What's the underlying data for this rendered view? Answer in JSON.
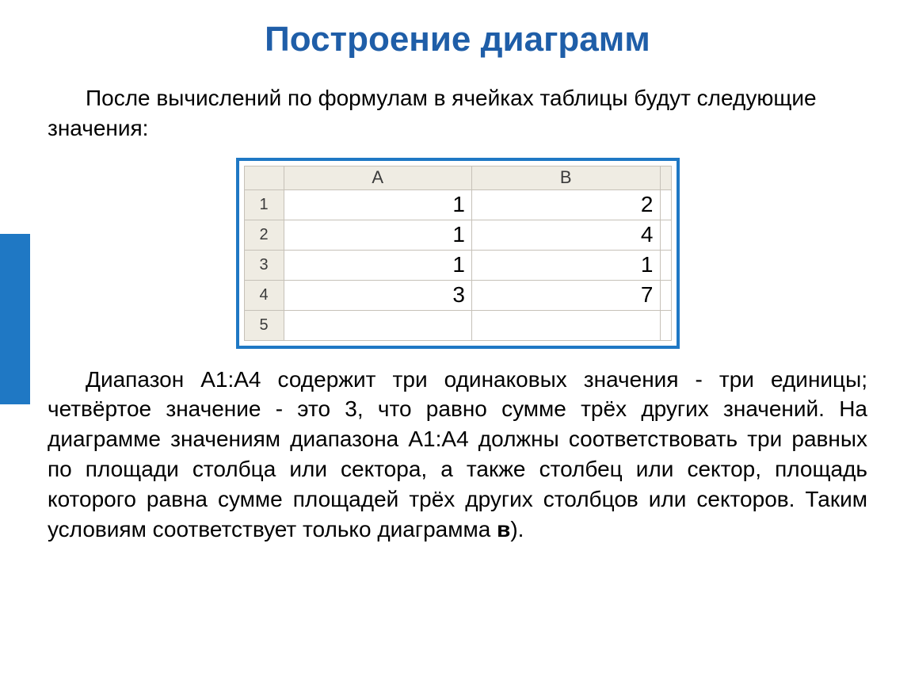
{
  "title": "Построение диаграмм",
  "intro": "После вычислений по формулам в ячейках таблицы будут следующие значения:",
  "table": {
    "columns": [
      "A",
      "B"
    ],
    "row_headers": [
      "1",
      "2",
      "3",
      "4",
      "5"
    ],
    "cells": [
      [
        "1",
        "2"
      ],
      [
        "1",
        "4"
      ],
      [
        "1",
        "1"
      ],
      [
        "3",
        "7"
      ],
      [
        "",
        ""
      ]
    ],
    "styling": {
      "border_color": "#1f78c4",
      "header_bg": "#efece3",
      "grid_color": "#c6c1b8",
      "cell_fontsize": 28,
      "header_fontsize": 22,
      "rowhdr_fontsize": 20
    }
  },
  "body_pre": "Диапазон A1:A4 содержит три одинаковых значения - три единицы; четвёртое значение - это 3, что равно сумме трёх других значений. На диаграмме значениям диапазона A1:A4 должны соответствовать три равных по площади столбца или сектора, а также столбец или сектор, площадь которого равна сумме площадей трёх других столбцов или секторов. Таким условиям соответствует только диаграмма ",
  "body_bold": "в",
  "body_post": ").",
  "colors": {
    "title": "#1f5ea8",
    "accent": "#1f78c4",
    "text": "#000000",
    "background": "#ffffff"
  }
}
